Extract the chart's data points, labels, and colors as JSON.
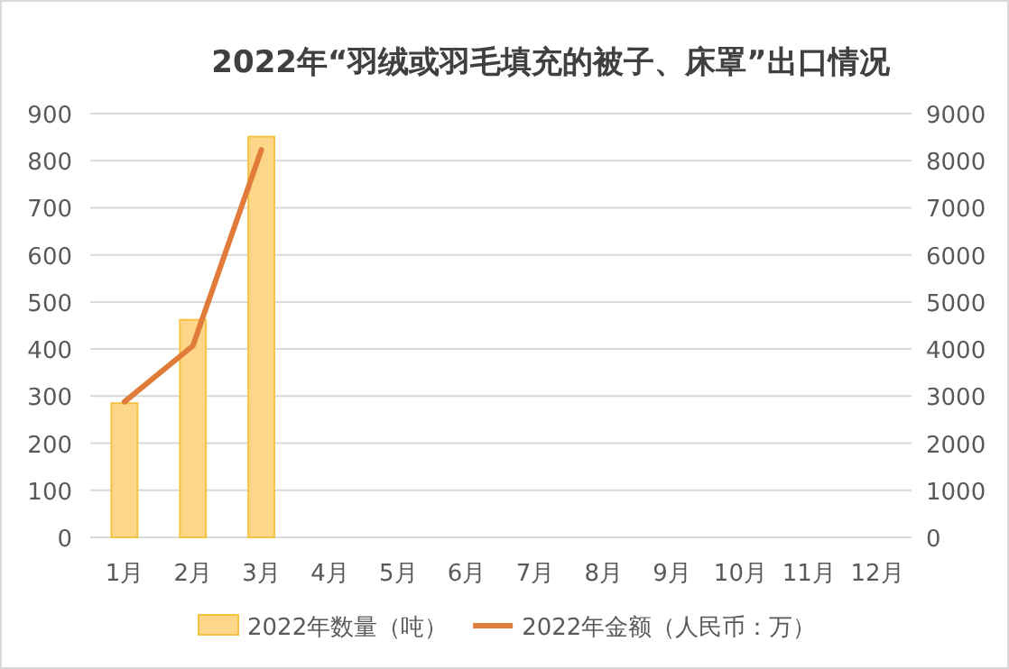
{
  "chart_data": {
    "type": "bar",
    "title": "2022年“羽绒或羽毛填充的被子、床罩”出口情况",
    "categories": [
      "1月",
      "2月",
      "3月",
      "4月",
      "5月",
      "6月",
      "7月",
      "8月",
      "9月",
      "10月",
      "11月",
      "12月"
    ],
    "series": [
      {
        "name": "2022年数量（吨）",
        "color": "#fdd68a",
        "values": [
          285,
          462,
          851,
          null,
          null,
          null,
          null,
          null,
          null,
          null,
          null,
          null
        ]
      },
      {
        "name": "2022年金额（人民币：万）",
        "type": "line",
        "axis": "y2",
        "color": "#e07b39",
        "values": [
          2880,
          4070,
          8230,
          null,
          null,
          null,
          null,
          null,
          null,
          null,
          null,
          null
        ]
      }
    ],
    "ylim": [
      0,
      900
    ],
    "yticks": [
      0,
      100,
      200,
      300,
      400,
      500,
      600,
      700,
      800,
      900
    ],
    "y2lim": [
      0,
      9000
    ],
    "y2ticks": [
      0,
      1000,
      2000,
      3000,
      4000,
      5000,
      6000,
      7000,
      8000,
      9000
    ],
    "grid": "y",
    "legend": "bottom",
    "marker": "none",
    "line_style": "solid"
  }
}
